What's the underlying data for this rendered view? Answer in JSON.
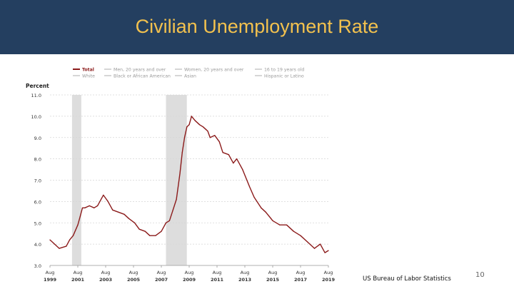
{
  "slide": {
    "title": "Civilian Unemployment Rate",
    "source": "US Bureau of Labor Statistics",
    "page_number": "10",
    "header_color": "#243f60",
    "title_color": "#f2c14e"
  },
  "chart_data": {
    "type": "line",
    "title": "",
    "ylabel": "Percent",
    "xlabel": "",
    "ylim": [
      3.0,
      11.0
    ],
    "yticks": [
      "3.0",
      "4.0",
      "5.0",
      "6.0",
      "7.0",
      "8.0",
      "9.0",
      "10.0",
      "11.0"
    ],
    "xlim": [
      "1999-08",
      "2019-08"
    ],
    "xticks": [
      {
        "month": "Aug",
        "year": "1999",
        "date": "1999-08"
      },
      {
        "month": "Aug",
        "year": "2001",
        "date": "2001-08"
      },
      {
        "month": "Aug",
        "year": "2003",
        "date": "2003-08"
      },
      {
        "month": "Aug",
        "year": "2005",
        "date": "2005-08"
      },
      {
        "month": "Aug",
        "year": "2007",
        "date": "2007-08"
      },
      {
        "month": "Aug",
        "year": "2009",
        "date": "2009-08"
      },
      {
        "month": "Aug",
        "year": "2011",
        "date": "2011-08"
      },
      {
        "month": "Aug",
        "year": "2013",
        "date": "2013-08"
      },
      {
        "month": "Aug",
        "year": "2015",
        "date": "2015-08"
      },
      {
        "month": "Aug",
        "year": "2017",
        "date": "2017-08"
      },
      {
        "month": "Aug",
        "year": "2019",
        "date": "2019-08"
      }
    ],
    "grid": true,
    "legend_position": "top",
    "legend": [
      {
        "label": "Total",
        "color": "#8b1a1a",
        "active": true
      },
      {
        "label": "Men, 20 years and over",
        "color": "#bbbbbb",
        "active": false
      },
      {
        "label": "Women, 20 years and over",
        "color": "#bbbbbb",
        "active": false
      },
      {
        "label": "16 to 19 years old",
        "color": "#bbbbbb",
        "active": false
      },
      {
        "label": "White",
        "color": "#bbbbbb",
        "active": false
      },
      {
        "label": "Black or African American",
        "color": "#bbbbbb",
        "active": false
      },
      {
        "label": "Asian",
        "color": "#bbbbbb",
        "active": false
      },
      {
        "label": "Hispanic or Latino",
        "color": "#bbbbbb",
        "active": false
      }
    ],
    "recessions": [
      {
        "start": "2001-03",
        "end": "2001-11"
      },
      {
        "start": "2007-12",
        "end": "2009-06"
      }
    ],
    "series": [
      {
        "name": "Total",
        "color": "#8b1a1a",
        "points": [
          [
            "1999-08",
            4.2
          ],
          [
            "1999-12",
            4.0
          ],
          [
            "2000-04",
            3.8
          ],
          [
            "2000-10",
            3.9
          ],
          [
            "2001-01",
            4.2
          ],
          [
            "2001-04",
            4.4
          ],
          [
            "2001-08",
            4.9
          ],
          [
            "2001-10",
            5.3
          ],
          [
            "2001-12",
            5.7
          ],
          [
            "2002-02",
            5.7
          ],
          [
            "2002-06",
            5.8
          ],
          [
            "2002-10",
            5.7
          ],
          [
            "2003-01",
            5.8
          ],
          [
            "2003-06",
            6.3
          ],
          [
            "2003-10",
            6.0
          ],
          [
            "2004-02",
            5.6
          ],
          [
            "2004-07",
            5.5
          ],
          [
            "2004-12",
            5.4
          ],
          [
            "2005-04",
            5.2
          ],
          [
            "2005-09",
            5.0
          ],
          [
            "2006-01",
            4.7
          ],
          [
            "2006-06",
            4.6
          ],
          [
            "2006-10",
            4.4
          ],
          [
            "2007-03",
            4.4
          ],
          [
            "2007-08",
            4.6
          ],
          [
            "2007-12",
            5.0
          ],
          [
            "2008-03",
            5.1
          ],
          [
            "2008-06",
            5.6
          ],
          [
            "2008-09",
            6.1
          ],
          [
            "2008-12",
            7.3
          ],
          [
            "2009-02",
            8.3
          ],
          [
            "2009-04",
            9.0
          ],
          [
            "2009-06",
            9.5
          ],
          [
            "2009-08",
            9.6
          ],
          [
            "2009-10",
            10.0
          ],
          [
            "2010-01",
            9.8
          ],
          [
            "2010-05",
            9.6
          ],
          [
            "2010-08",
            9.5
          ],
          [
            "2010-10",
            9.4
          ],
          [
            "2010-12",
            9.3
          ],
          [
            "2011-02",
            9.0
          ],
          [
            "2011-06",
            9.1
          ],
          [
            "2011-10",
            8.8
          ],
          [
            "2012-01",
            8.3
          ],
          [
            "2012-06",
            8.2
          ],
          [
            "2012-10",
            7.8
          ],
          [
            "2013-01",
            8.0
          ],
          [
            "2013-06",
            7.5
          ],
          [
            "2013-12",
            6.7
          ],
          [
            "2014-04",
            6.2
          ],
          [
            "2014-10",
            5.7
          ],
          [
            "2015-02",
            5.5
          ],
          [
            "2015-08",
            5.1
          ],
          [
            "2016-02",
            4.9
          ],
          [
            "2016-08",
            4.9
          ],
          [
            "2017-02",
            4.6
          ],
          [
            "2017-08",
            4.4
          ],
          [
            "2018-02",
            4.1
          ],
          [
            "2018-08",
            3.8
          ],
          [
            "2019-01",
            4.0
          ],
          [
            "2019-05",
            3.6
          ],
          [
            "2019-08",
            3.7
          ]
        ]
      }
    ]
  }
}
